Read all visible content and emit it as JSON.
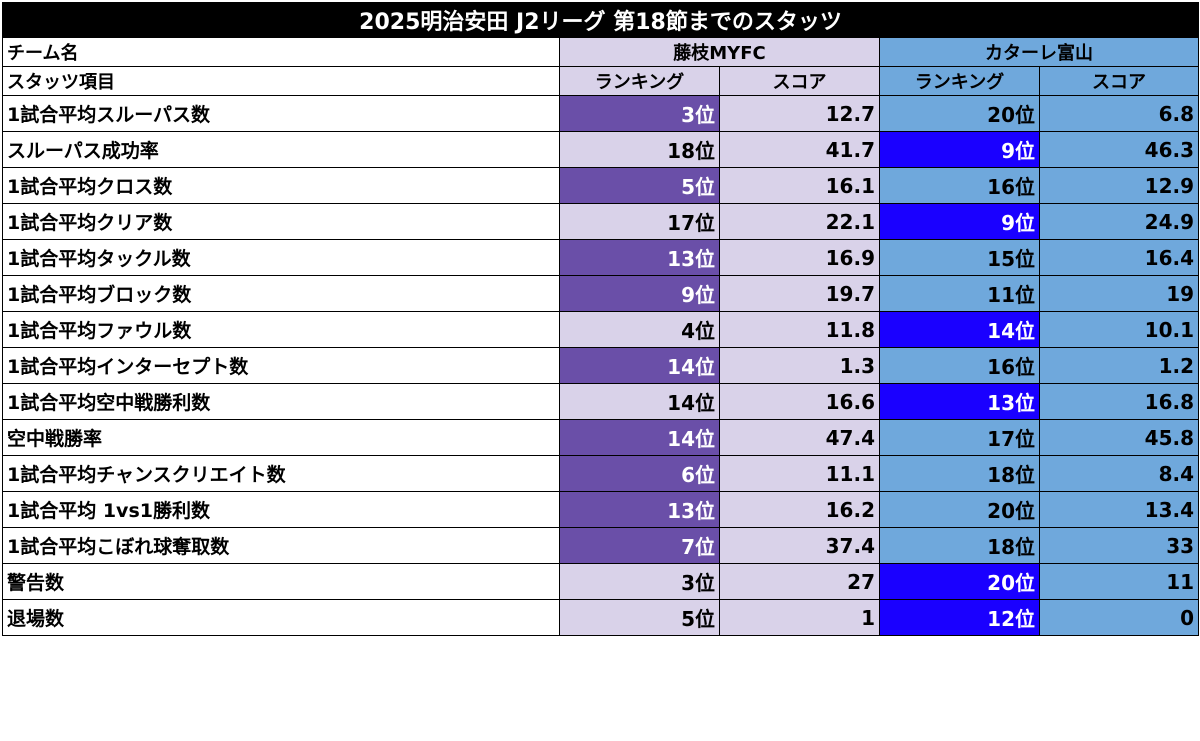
{
  "title": "2025明治安田 J2リーグ  第18節までのスタッツ",
  "header": {
    "team_label": "チーム名",
    "item_label": "スタッツ項目",
    "team1": "藤枝MYFC",
    "team2": "カターレ富山",
    "rank_label": "ランキング",
    "score_label": "スコア"
  },
  "colors": {
    "team1_base": "#d9d2e9",
    "team1_highlight": "#6a4fa8",
    "team2_base": "#6fa8dc",
    "team2_highlight": "#1a00ff"
  },
  "chart_data": {
    "type": "table",
    "title": "2025明治安田 J2リーグ  第18節までのスタッツ",
    "columns": [
      "スタッツ項目",
      "藤枝MYFC ランキング",
      "藤枝MYFC スコア",
      "カターレ富山 ランキング",
      "カターレ富山 スコア"
    ],
    "rows": [
      {
        "item": "1試合平均スルーパス数",
        "t1_rank": "3位",
        "t1_score": "12.7",
        "t2_rank": "20位",
        "t2_score": "6.8",
        "t1_hl": true,
        "t2_hl": false
      },
      {
        "item": "スルーパス成功率",
        "t1_rank": "18位",
        "t1_score": "41.7",
        "t2_rank": "9位",
        "t2_score": "46.3",
        "t1_hl": false,
        "t2_hl": true
      },
      {
        "item": "1試合平均クロス数",
        "t1_rank": "5位",
        "t1_score": "16.1",
        "t2_rank": "16位",
        "t2_score": "12.9",
        "t1_hl": true,
        "t2_hl": false
      },
      {
        "item": "1試合平均クリア数",
        "t1_rank": "17位",
        "t1_score": "22.1",
        "t2_rank": "9位",
        "t2_score": "24.9",
        "t1_hl": false,
        "t2_hl": true
      },
      {
        "item": "1試合平均タックル数",
        "t1_rank": "13位",
        "t1_score": "16.9",
        "t2_rank": "15位",
        "t2_score": "16.4",
        "t1_hl": true,
        "t2_hl": false
      },
      {
        "item": "1試合平均ブロック数",
        "t1_rank": "9位",
        "t1_score": "19.7",
        "t2_rank": "11位",
        "t2_score": "19",
        "t1_hl": true,
        "t2_hl": false
      },
      {
        "item": "1試合平均ファウル数",
        "t1_rank": "4位",
        "t1_score": "11.8",
        "t2_rank": "14位",
        "t2_score": "10.1",
        "t1_hl": false,
        "t2_hl": true
      },
      {
        "item": "1試合平均インターセプト数",
        "t1_rank": "14位",
        "t1_score": "1.3",
        "t2_rank": "16位",
        "t2_score": "1.2",
        "t1_hl": true,
        "t2_hl": false
      },
      {
        "item": "1試合平均空中戦勝利数",
        "t1_rank": "14位",
        "t1_score": "16.6",
        "t2_rank": "13位",
        "t2_score": "16.8",
        "t1_hl": false,
        "t2_hl": true
      },
      {
        "item": "空中戦勝率",
        "t1_rank": "14位",
        "t1_score": "47.4",
        "t2_rank": "17位",
        "t2_score": "45.8",
        "t1_hl": true,
        "t2_hl": false
      },
      {
        "item": "1試合平均チャンスクリエイト数",
        "t1_rank": "6位",
        "t1_score": "11.1",
        "t2_rank": "18位",
        "t2_score": "8.4",
        "t1_hl": true,
        "t2_hl": false
      },
      {
        "item": "1試合平均 1vs1勝利数",
        "t1_rank": "13位",
        "t1_score": "16.2",
        "t2_rank": "20位",
        "t2_score": "13.4",
        "t1_hl": true,
        "t2_hl": false
      },
      {
        "item": "1試合平均こぼれ球奪取数",
        "t1_rank": "7位",
        "t1_score": "37.4",
        "t2_rank": "18位",
        "t2_score": "33",
        "t1_hl": true,
        "t2_hl": false
      },
      {
        "item": "警告数",
        "t1_rank": "3位",
        "t1_score": "27",
        "t2_rank": "20位",
        "t2_score": "11",
        "t1_hl": false,
        "t2_hl": true
      },
      {
        "item": "退場数",
        "t1_rank": "5位",
        "t1_score": "1",
        "t2_rank": "12位",
        "t2_score": "0",
        "t1_hl": false,
        "t2_hl": true
      }
    ]
  }
}
